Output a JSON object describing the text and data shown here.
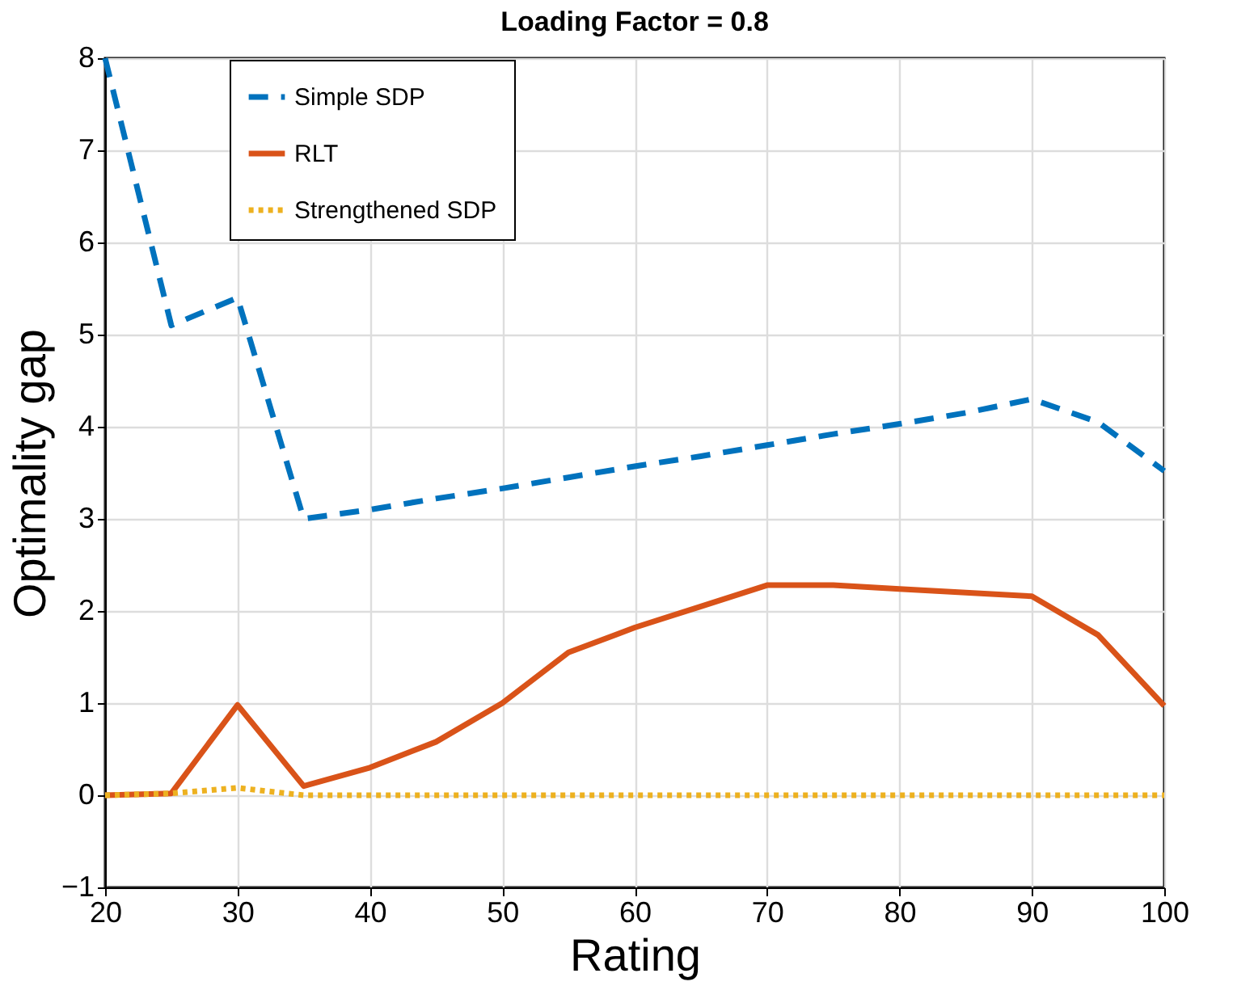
{
  "chart_data": {
    "type": "line",
    "title": "Loading Factor = 0.8",
    "xlabel": "Rating",
    "ylabel": "Optimality gap",
    "x": [
      20,
      25,
      30,
      35,
      40,
      45,
      50,
      55,
      60,
      65,
      70,
      75,
      80,
      85,
      90,
      95,
      100
    ],
    "series": [
      {
        "name": "Simple SDP",
        "color": "#0072bd",
        "line_style": "dashed",
        "values": [
          8.0,
          5.1,
          5.4,
          3.0,
          3.1,
          3.22,
          3.33,
          3.45,
          3.57,
          3.68,
          3.8,
          3.92,
          4.03,
          4.15,
          4.3,
          4.05,
          3.52
        ]
      },
      {
        "name": "RLT",
        "color": "#d95319",
        "line_style": "solid",
        "values": [
          0,
          0.02,
          0.98,
          0.1,
          0.3,
          0.58,
          1.0,
          1.55,
          1.82,
          2.05,
          2.28,
          2.28,
          2.24,
          2.2,
          2.16,
          1.74,
          0.97
        ]
      },
      {
        "name": "Strengthened SDP",
        "color": "#edb120",
        "line_style": "dotted",
        "values": [
          0,
          0.02,
          0.08,
          0,
          0,
          0,
          0,
          0,
          0,
          0,
          0,
          0,
          0,
          0,
          0,
          0,
          0
        ]
      }
    ],
    "xlim": [
      20,
      100
    ],
    "xticks": [
      20,
      30,
      40,
      50,
      60,
      70,
      80,
      90,
      100
    ],
    "ylim": [
      -1,
      8
    ],
    "yticks": [
      -1,
      0,
      1,
      2,
      3,
      4,
      5,
      6,
      7,
      8
    ],
    "grid": true,
    "legend": "top left",
    "marker": "none"
  }
}
